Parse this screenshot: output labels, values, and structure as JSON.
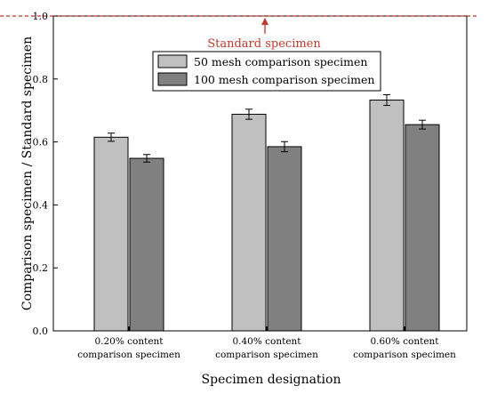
{
  "chart_data": {
    "type": "bar",
    "title": "",
    "xlabel": "Specimen designation",
    "ylabel": "Comparison specimen / Standard specimen",
    "ylim": [
      0,
      1.0
    ],
    "yticks": [
      0.0,
      0.2,
      0.4,
      0.6,
      0.8,
      1.0
    ],
    "ytick_labels": [
      "0.0",
      "0.2",
      "0.4",
      "0.6",
      "0.8",
      "1.0"
    ],
    "grid": false,
    "legend_position": "top-center",
    "categories": [
      [
        "0.20% content",
        "comparison specimen"
      ],
      [
        "0.40% content",
        "comparison specimen"
      ],
      [
        "0.60% content",
        "comparison specimen"
      ]
    ],
    "series": [
      {
        "name": "50 mesh comparison specimen",
        "color": "#c0c0c0",
        "values": [
          0.615,
          0.688,
          0.733
        ],
        "errors": [
          0.013,
          0.016,
          0.017
        ]
      },
      {
        "name": "100 mesh comparison specimen",
        "color": "#808080",
        "values": [
          0.548,
          0.585,
          0.655
        ],
        "errors": [
          0.012,
          0.016,
          0.014
        ]
      }
    ],
    "reference_line": {
      "value": 1.0,
      "label": "Standard specimen",
      "color": "#c0392b"
    }
  }
}
